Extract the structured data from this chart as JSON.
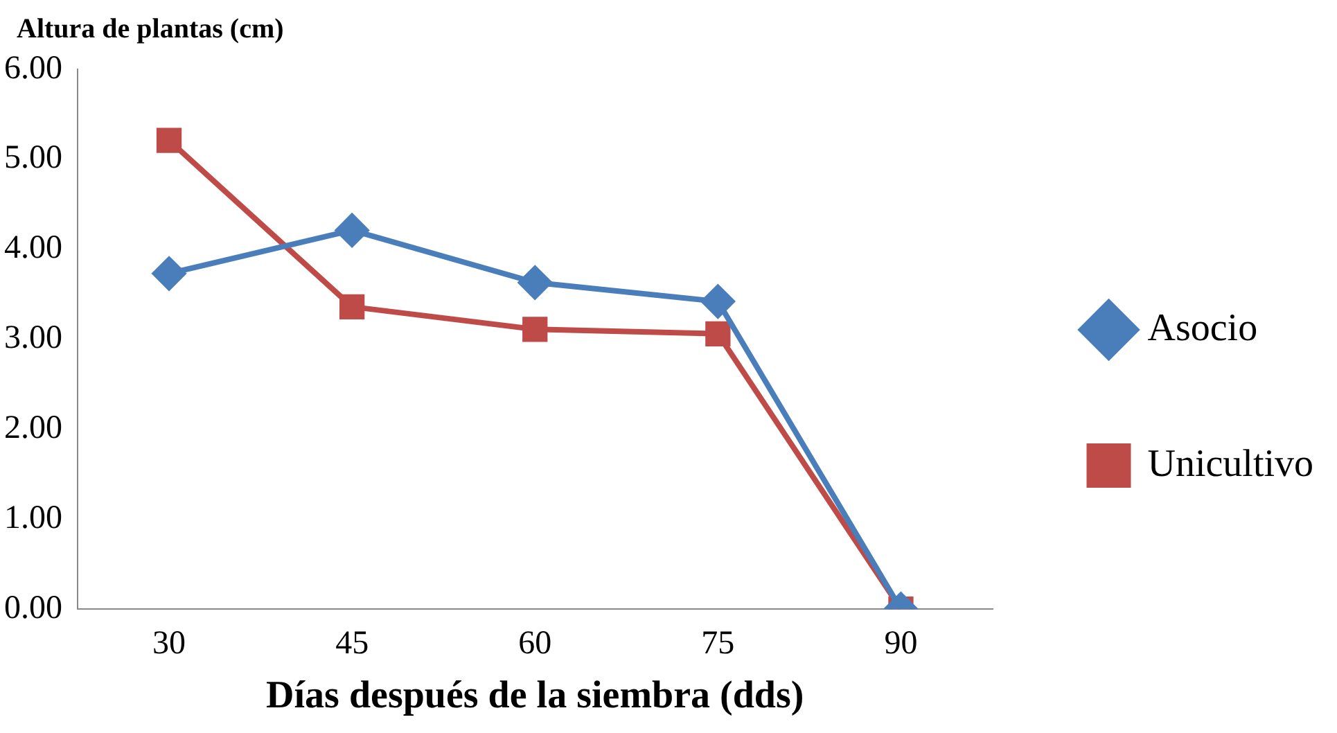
{
  "chart_data": {
    "type": "line",
    "ylabel": "Altura de plantas (cm)",
    "xlabel": "Días después de la siembra (dds)",
    "categories": [
      "30",
      "45",
      "60",
      "75",
      "90"
    ],
    "series": [
      {
        "name": "Asocio",
        "color": "#4a7ebb",
        "marker": "diamond",
        "values": [
          3.73,
          4.21,
          3.63,
          3.42,
          0
        ]
      },
      {
        "name": "Unicultivo",
        "color": "#be4b48",
        "marker": "square",
        "values": [
          5.21,
          3.36,
          3.11,
          3.06,
          0
        ]
      }
    ],
    "ylim": [
      0,
      6
    ],
    "yticks": [
      {
        "value": 0,
        "label": "0.00"
      },
      {
        "value": 1,
        "label": "1.00"
      },
      {
        "value": 2,
        "label": "2.00"
      },
      {
        "value": 3,
        "label": "3.00"
      },
      {
        "value": 4,
        "label": "4.00"
      },
      {
        "value": 5,
        "label": "5.00"
      },
      {
        "value": 6,
        "label": "6.00"
      }
    ],
    "grid": false,
    "legend": "right",
    "line_style": "solid"
  }
}
